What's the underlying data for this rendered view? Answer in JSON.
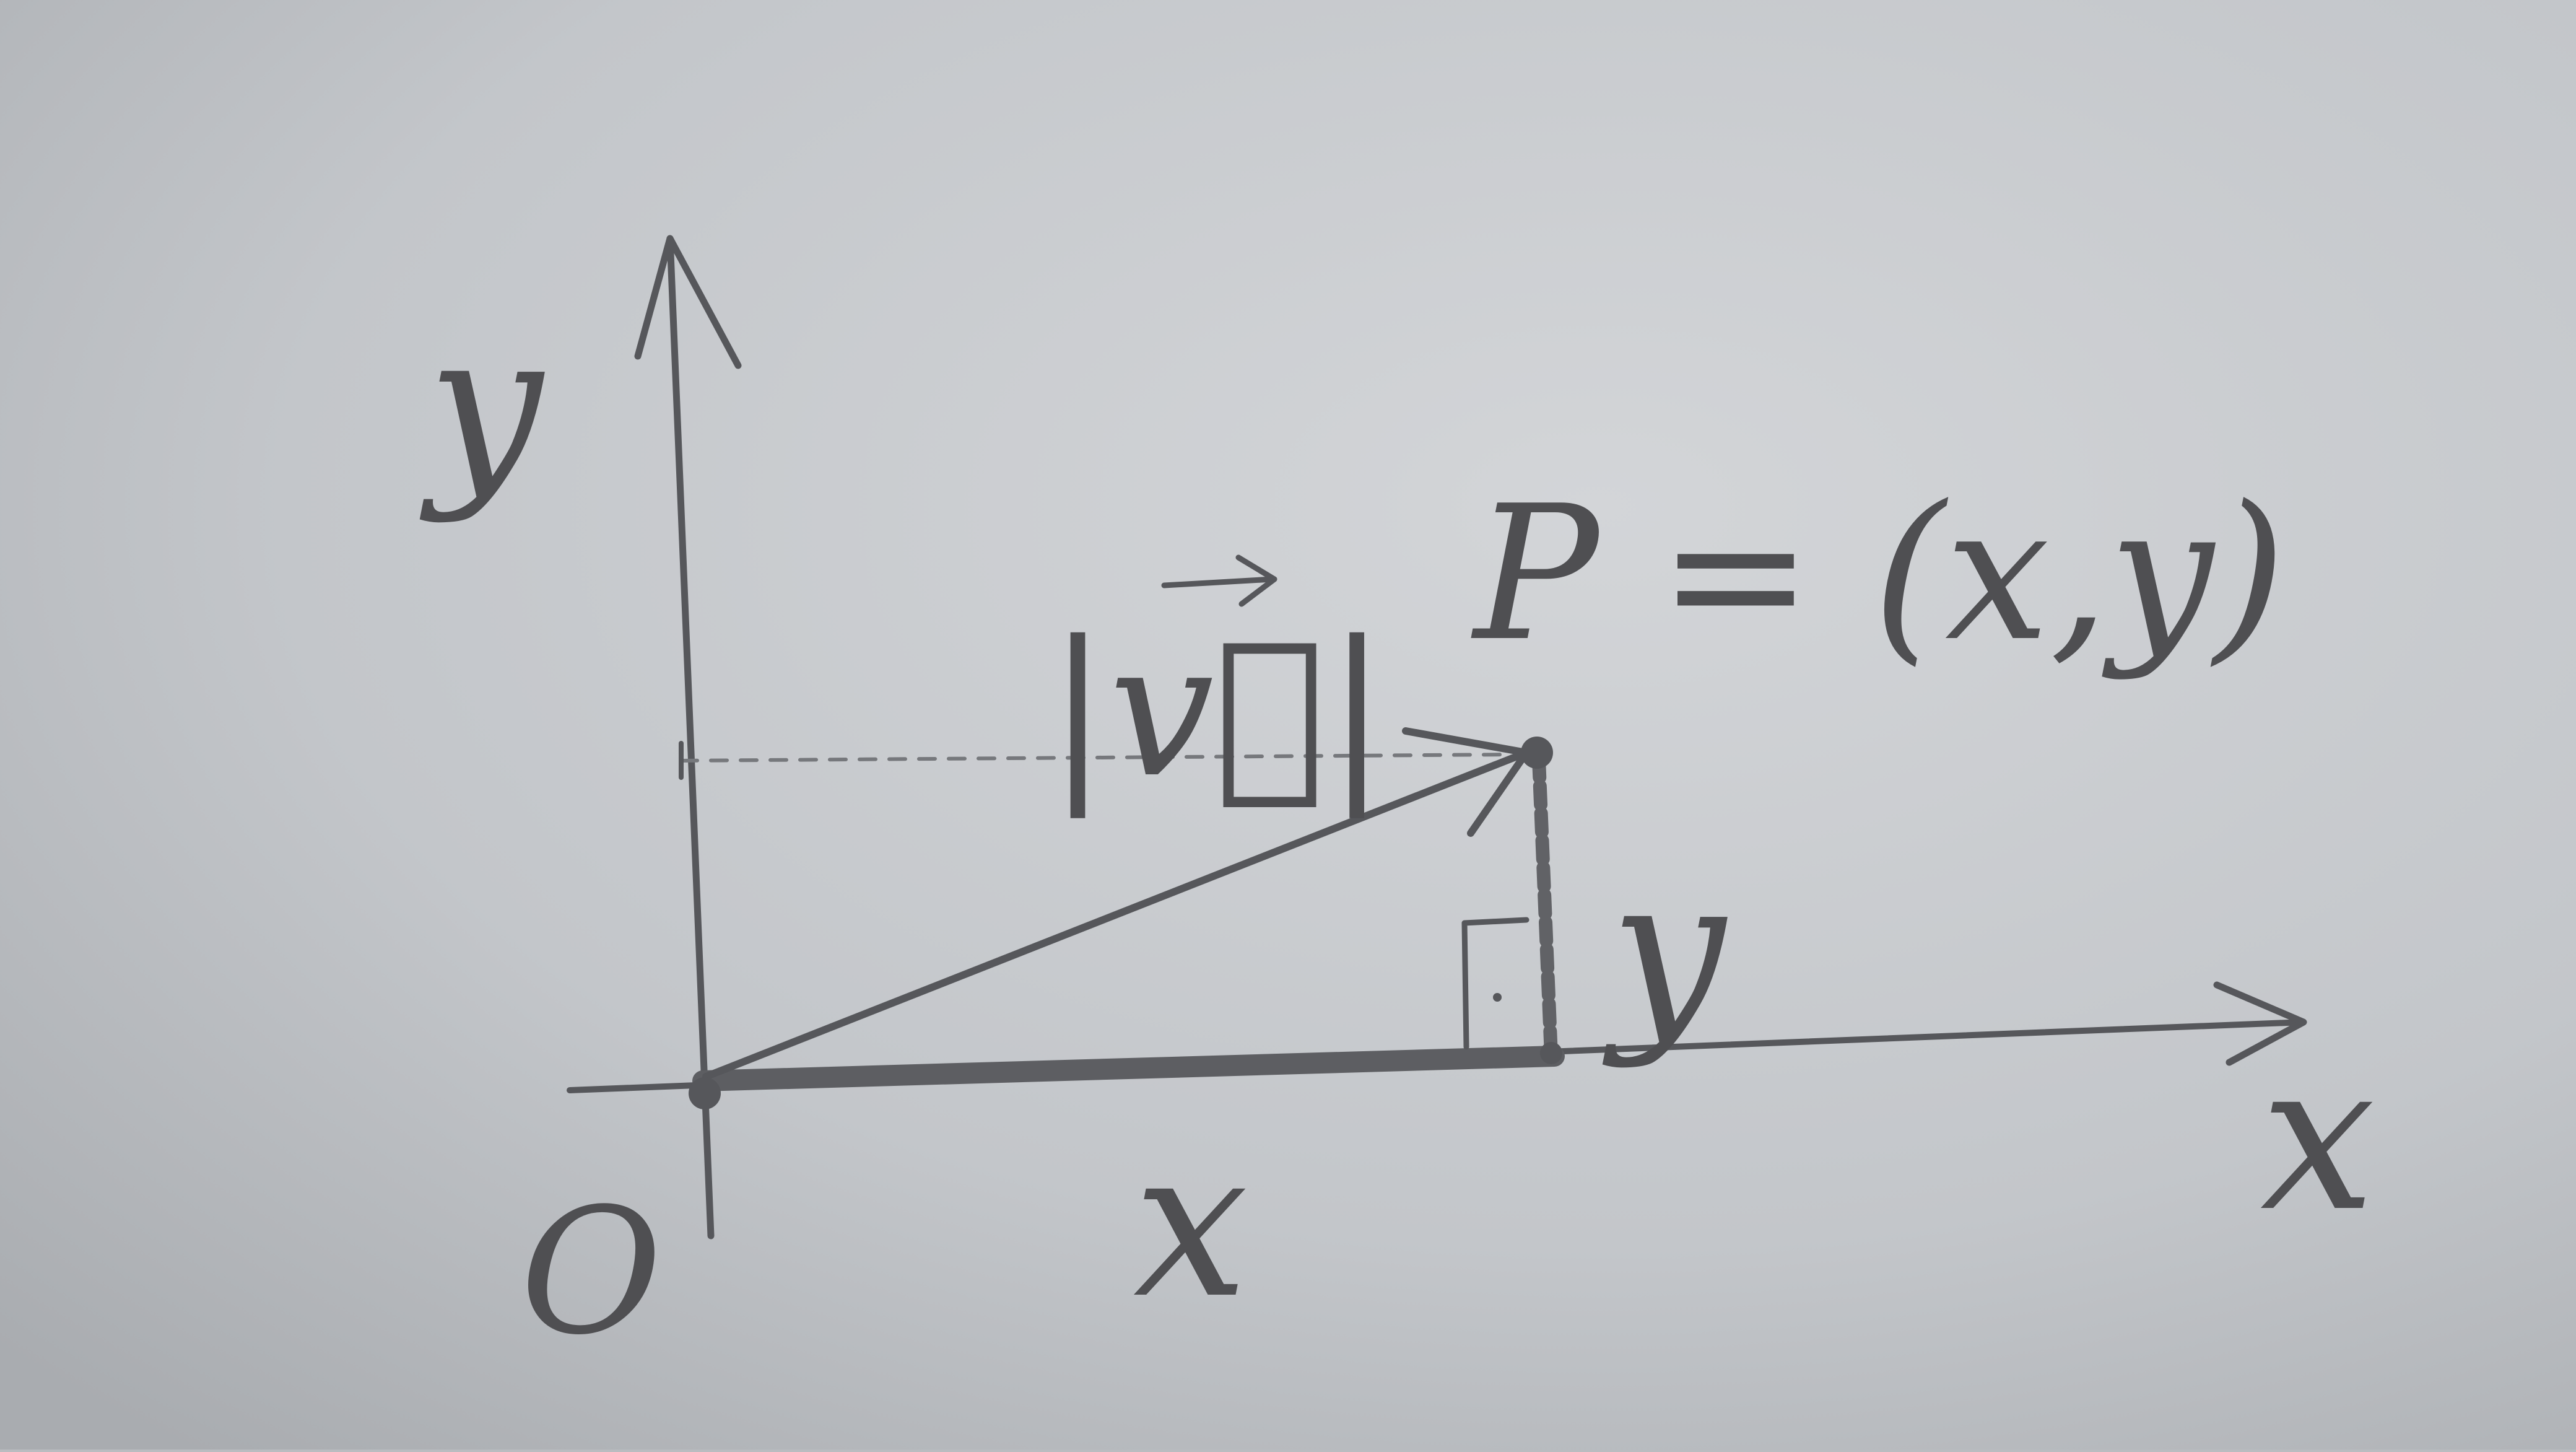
{
  "diagram": {
    "axis_labels": {
      "y": "y",
      "x": "x"
    },
    "origin_label": "O",
    "point_label": "P = (x,y)",
    "magnitude_label": "|v⃗|",
    "x_component_label": "x",
    "y_component_label": "y",
    "colors": {
      "paper": "#c4c7cb",
      "pencil": "#55565a",
      "pencil_light": "#74767a"
    }
  }
}
